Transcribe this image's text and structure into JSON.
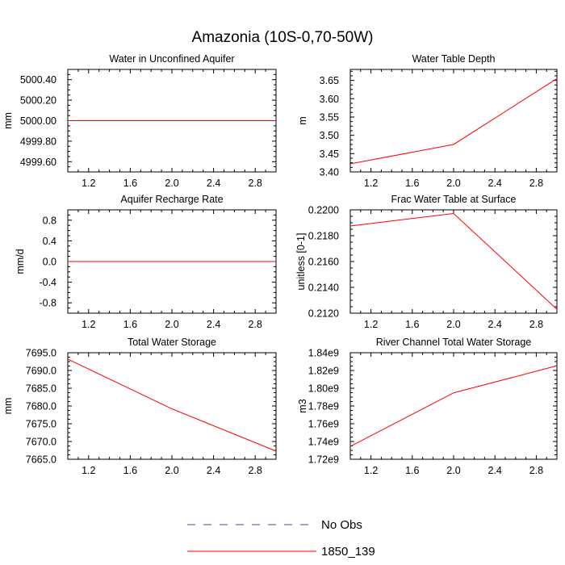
{
  "figure_title": "Amazonia (10S-0,70-50W)",
  "legend": [
    {
      "label": "No Obs",
      "color": "#4a4aa8",
      "dashed": true
    },
    {
      "label": "1850_139",
      "color": "#ff0000",
      "dashed": false
    }
  ],
  "chart_data": [
    {
      "type": "line",
      "title": "Water in Unconfined Aquifer",
      "xlabel": "",
      "ylabel": "mm",
      "xlim": [
        1.0,
        3.0
      ],
      "ylim": [
        4999.5,
        5000.5
      ],
      "xticks": [
        1.2,
        1.6,
        2.0,
        2.4,
        2.8
      ],
      "xtick_labels": [
        "1.2",
        "1.6",
        "2.0",
        "2.4",
        "2.8"
      ],
      "yticks": [
        4999.6,
        4999.8,
        5000.0,
        5000.2,
        5000.4
      ],
      "ytick_labels": [
        "4999.60",
        "4999.80",
        "5000.00",
        "5000.20",
        "5000.40"
      ],
      "series": [
        {
          "name": "1850_139",
          "x": [
            1,
            2,
            3
          ],
          "y": [
            5000.0,
            5000.0,
            5000.0
          ]
        }
      ]
    },
    {
      "type": "line",
      "title": "Water Table Depth",
      "xlabel": "",
      "ylabel": "m",
      "xlim": [
        1.0,
        3.0
      ],
      "ylim": [
        3.4,
        3.68
      ],
      "xticks": [
        1.2,
        1.6,
        2.0,
        2.4,
        2.8
      ],
      "xtick_labels": [
        "1.2",
        "1.6",
        "2.0",
        "2.4",
        "2.8"
      ],
      "yticks": [
        3.4,
        3.45,
        3.5,
        3.55,
        3.6,
        3.65
      ],
      "ytick_labels": [
        "3.40",
        "3.45",
        "3.50",
        "3.55",
        "3.60",
        "3.65"
      ],
      "series": [
        {
          "name": "1850_139",
          "x": [
            1,
            2,
            3
          ],
          "y": [
            3.422,
            3.475,
            3.655
          ]
        }
      ]
    },
    {
      "type": "line",
      "title": "Aquifer Recharge Rate",
      "xlabel": "",
      "ylabel": "mm/d",
      "xlim": [
        1.0,
        3.0
      ],
      "ylim": [
        -1.0,
        1.0
      ],
      "xticks": [
        1.2,
        1.6,
        2.0,
        2.4,
        2.8
      ],
      "xtick_labels": [
        "1.2",
        "1.6",
        "2.0",
        "2.4",
        "2.8"
      ],
      "yticks": [
        -0.8,
        -0.4,
        0.0,
        0.4,
        0.8
      ],
      "ytick_labels": [
        "-0.8",
        "-0.4",
        "0.0",
        "0.4",
        "0.8"
      ],
      "series": [
        {
          "name": "1850_139",
          "x": [
            1,
            2,
            3
          ],
          "y": [
            0.0,
            0.0,
            0.0
          ]
        }
      ]
    },
    {
      "type": "line",
      "title": "Frac Water Table at Surface",
      "xlabel": "",
      "ylabel": "unitless [0-1]",
      "xlim": [
        1.0,
        3.0
      ],
      "ylim": [
        0.212,
        0.22
      ],
      "xticks": [
        1.2,
        1.6,
        2.0,
        2.4,
        2.8
      ],
      "xtick_labels": [
        "1.2",
        "1.6",
        "2.0",
        "2.4",
        "2.8"
      ],
      "yticks": [
        0.212,
        0.214,
        0.216,
        0.218,
        0.22
      ],
      "ytick_labels": [
        "0.2120",
        "0.2140",
        "0.2160",
        "0.2180",
        "0.2200"
      ],
      "series": [
        {
          "name": "1850_139",
          "x": [
            1,
            2,
            3
          ],
          "y": [
            0.21875,
            0.21972,
            0.2123
          ]
        }
      ]
    },
    {
      "type": "line",
      "title": "Total Water Storage",
      "xlabel": "",
      "ylabel": "mm",
      "xlim": [
        1.0,
        3.0
      ],
      "ylim": [
        7665.0,
        7695.0
      ],
      "xticks": [
        1.2,
        1.6,
        2.0,
        2.4,
        2.8
      ],
      "xtick_labels": [
        "1.2",
        "1.6",
        "2.0",
        "2.4",
        "2.8"
      ],
      "yticks": [
        7665,
        7670,
        7675,
        7680,
        7685,
        7690,
        7695
      ],
      "ytick_labels": [
        "7665.0",
        "7670.0",
        "7675.0",
        "7680.0",
        "7685.0",
        "7690.0",
        "7695.0"
      ],
      "series": [
        {
          "name": "1850_139",
          "x": [
            1,
            2,
            3
          ],
          "y": [
            7693.2,
            7679.2,
            7667.3
          ]
        }
      ]
    },
    {
      "type": "line",
      "title": "River Channel Total Water Storage",
      "xlabel": "",
      "ylabel": "m3",
      "xlim": [
        1.0,
        3.0
      ],
      "ylim": [
        1.72,
        1.84
      ],
      "xticks": [
        1.2,
        1.6,
        2.0,
        2.4,
        2.8
      ],
      "xtick_labels": [
        "1.2",
        "1.6",
        "2.0",
        "2.4",
        "2.8"
      ],
      "yticks": [
        1.72,
        1.74,
        1.76,
        1.78,
        1.8,
        1.82,
        1.84
      ],
      "ytick_labels": [
        "1.72e9",
        "1.74e9",
        "1.76e9",
        "1.78e9",
        "1.80e9",
        "1.82e9",
        "1.84e9"
      ],
      "series": [
        {
          "name": "1850_139",
          "x": [
            1,
            2,
            3
          ],
          "y": [
            1.7345,
            1.7948,
            1.8253
          ]
        }
      ]
    }
  ]
}
